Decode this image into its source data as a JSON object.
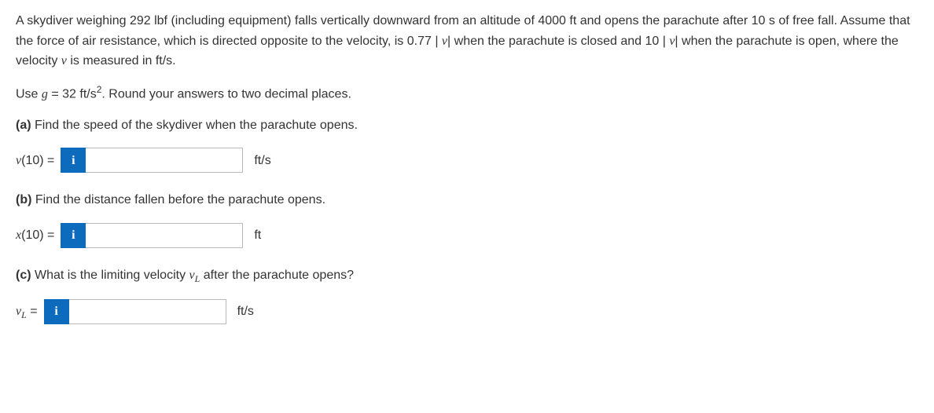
{
  "problem": {
    "intro_html": "A skydiver weighing 292 lbf (including equipment) falls vertically downward from an altitude of 4000 ft and opens the parachute after 10 s of free fall. Assume that the force of air resistance, which is directed opposite to the velocity, is 0.77 <span class='abs-pipe'>|</span> <span class='math'>v</span><span class='abs-pipe'>|</span> when the parachute is closed and 10 <span class='abs-pipe'>|</span> <span class='math'>v</span><span class='abs-pipe'>|</span> when the parachute is open, where the velocity <span class='math'>v</span> is measured in ft/s.",
    "instruction_html": "Use <span class='math'>g</span> = 32 ft/s<span class='sup'>2</span>. Round your answers to two decimal places."
  },
  "parts": {
    "a": {
      "label_html": "<b>(a)</b> Find the speed of the skydiver when the parachute opens.",
      "lhs_html": "<span class='math'>v</span>(10) =",
      "value": "",
      "unit": "ft/s"
    },
    "b": {
      "label_html": "<b>(b)</b> Find the distance fallen before the parachute opens.",
      "lhs_html": "<span class='math'>x</span>(10) =",
      "value": "",
      "unit": "ft"
    },
    "c": {
      "label_html": "<b>(c)</b> What is the limiting velocity <span class='math'>v<span class='sub'>L</span></span> after the parachute opens?",
      "lhs_html": "<span class='math'>v<span class='sub'>L</span></span> =",
      "value": "",
      "unit": "ft/s"
    }
  },
  "info_glyph": "i"
}
